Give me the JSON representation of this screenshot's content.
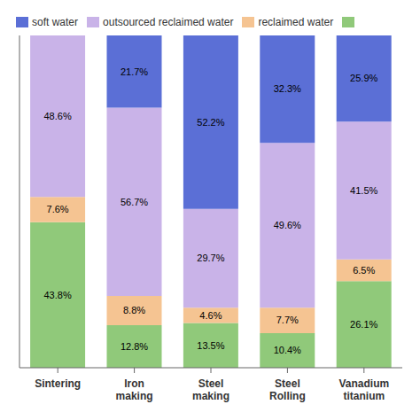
{
  "chart_data": {
    "type": "bar",
    "stacked": true,
    "categories": [
      "Sintering",
      "Iron\nmaking",
      "Steel\nmaking",
      "Steel\nRolling",
      "Vanadium\ntitanium"
    ],
    "series": [
      {
        "color": "#90c97a",
        "values": [
          43.8,
          12.8,
          13.5,
          10.4,
          26.1
        ],
        "value_labels": [
          "43.8%",
          "12.8%",
          "13.5%",
          "10.4%",
          "26.1%"
        ]
      },
      {
        "name": "reclaimed water",
        "color": "#f5c492",
        "values": [
          7.6,
          8.8,
          4.6,
          7.7,
          6.5
        ],
        "value_labels": [
          "7.6%",
          "8.8%",
          "4.6%",
          "7.7%",
          "6.5%"
        ]
      },
      {
        "name": "outsourced reclaimed water",
        "color": "#c9b3e8",
        "values": [
          48.6,
          56.7,
          29.7,
          49.6,
          41.5
        ],
        "value_labels": [
          "48.6%",
          "56.7%",
          "29.7%",
          "49.6%",
          "41.5%"
        ]
      },
      {
        "name": "soft water",
        "color": "#5b6fd6",
        "values": [
          0.0,
          21.7,
          52.2,
          32.3,
          25.9
        ],
        "value_labels": [
          null,
          "21.7%",
          "52.2%",
          "32.3%",
          "25.9%"
        ]
      }
    ],
    "ylim": [
      0,
      100
    ],
    "data_labels": true,
    "tick_labels": "x",
    "legend": "upper left",
    "grid": false
  }
}
